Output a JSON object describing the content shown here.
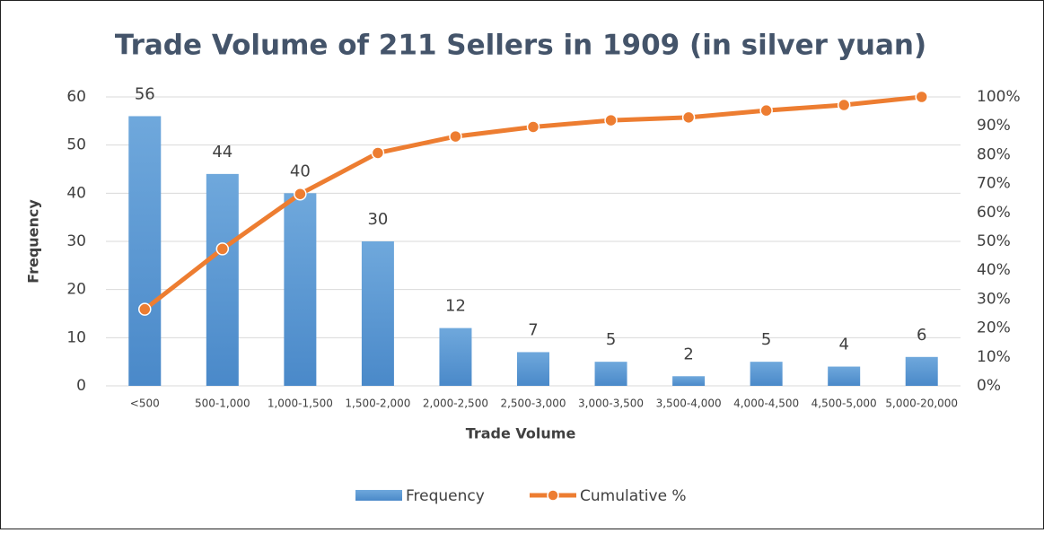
{
  "chart_data": {
    "type": "pareto",
    "title": "Trade Volume of 211 Sellers in 1909 (in silver yuan)",
    "x_label": "Trade Volume",
    "y_label": "Frequency",
    "categories": [
      "<500",
      "500-1,000",
      "1,000-1,500",
      "1,500-2,000",
      "2,000-2,500",
      "2,500-3,000",
      "3,000-3,500",
      "3,500-4,000",
      "4,000-4,500",
      "4,500-5,000",
      "5,000-20,000"
    ],
    "series": [
      {
        "name": "Frequency",
        "color": "#5b9bd5",
        "kind": "bar",
        "values": [
          56,
          44,
          40,
          30,
          12,
          7,
          5,
          2,
          5,
          4,
          6
        ]
      },
      {
        "name": "Cumulative %",
        "color": "#ed7d31",
        "kind": "line",
        "axis": "y2",
        "values": [
          26.5,
          47.4,
          66.4,
          80.6,
          86.3,
          89.6,
          91.9,
          92.9,
          95.3,
          97.2,
          100
        ]
      }
    ],
    "ylim": [
      0,
      60
    ],
    "yticks": [
      0,
      10,
      20,
      30,
      40,
      50,
      60
    ],
    "y2lim": [
      0,
      100
    ],
    "y2ticks": [
      {
        "value": 0,
        "label": "0%"
      },
      {
        "value": 10,
        "label": "10%"
      },
      {
        "value": 20,
        "label": "20%"
      },
      {
        "value": 30,
        "label": "30%"
      },
      {
        "value": 40,
        "label": "40%"
      },
      {
        "value": 50,
        "label": "50%"
      },
      {
        "value": 60,
        "label": "60%"
      },
      {
        "value": 70,
        "label": "70%"
      },
      {
        "value": 80,
        "label": "80%"
      },
      {
        "value": 90,
        "label": "90%"
      },
      {
        "value": 100,
        "label": "100%"
      }
    ],
    "grid": true,
    "legend": "bottom"
  }
}
